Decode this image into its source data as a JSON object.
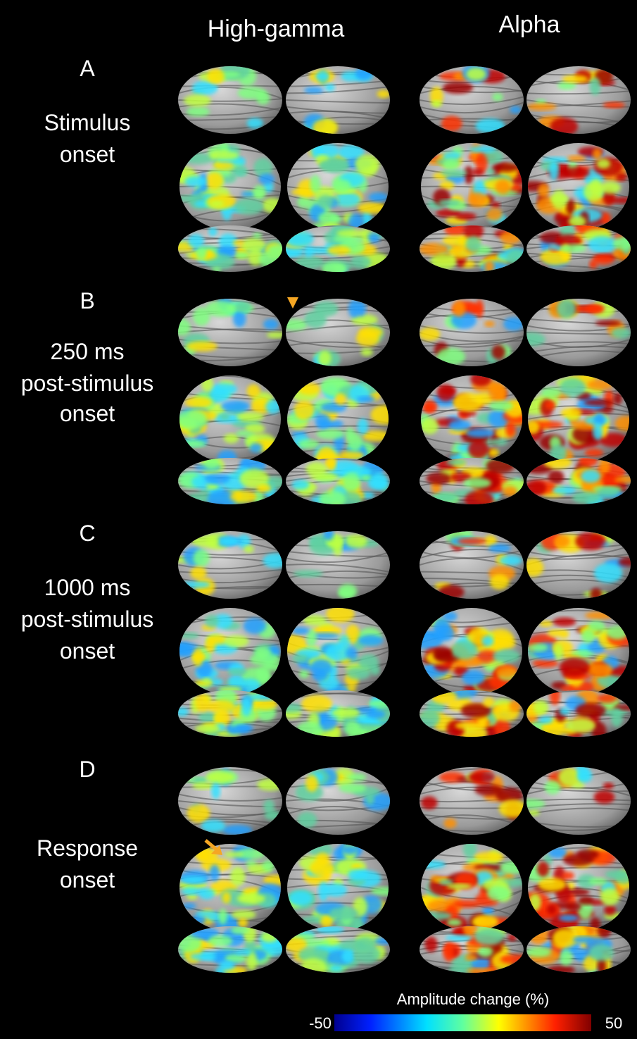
{
  "columns": [
    "High-gamma",
    "Alpha"
  ],
  "panels": [
    {
      "letter": "A",
      "label": [
        "Stimulus",
        "onset"
      ]
    },
    {
      "letter": "B",
      "label": [
        "250 ms",
        "post-stimulus",
        "onset"
      ]
    },
    {
      "letter": "C",
      "label": [
        "1000 ms",
        "post-stimulus",
        "onset"
      ]
    },
    {
      "letter": "D",
      "label": [
        "Response",
        "onset"
      ]
    }
  ],
  "colorbar": {
    "title": "Amplitude change (%)",
    "min": -50,
    "max": 50
  }
}
